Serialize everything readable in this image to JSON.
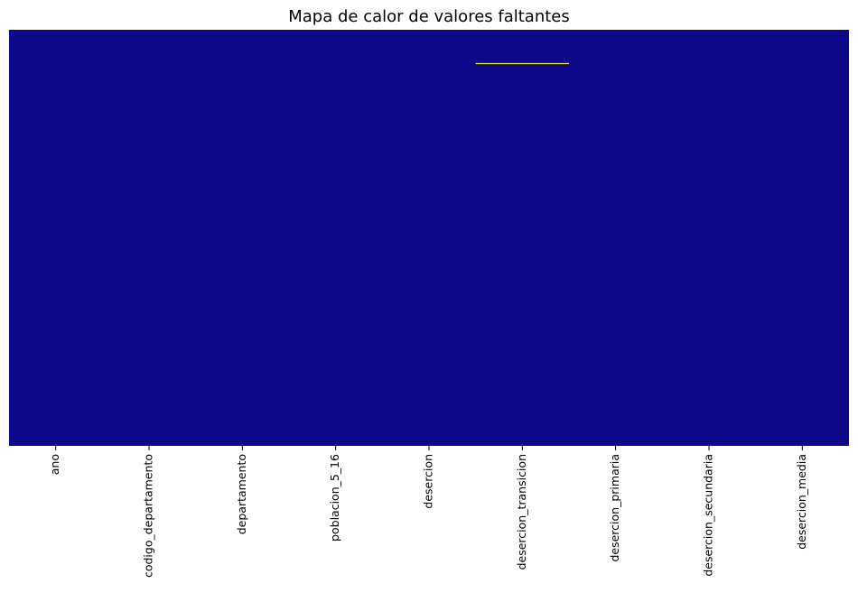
{
  "chart_data": {
    "type": "heatmap",
    "title": "Mapa de calor de valores faltantes",
    "xlabel": "",
    "ylabel": "",
    "columns": [
      "ano",
      "codigo_departamento",
      "departamento",
      "poblacion_5_16",
      "desercion",
      "desercion_transicion",
      "desercion_primaria",
      "desercion_secundaria",
      "desercion_media"
    ],
    "rows_shown": false,
    "grid": false,
    "colorbar": false,
    "colors": {
      "present": "#0d0887",
      "missing": "#f0f921"
    },
    "missing_cells": [
      {
        "column": "desercion_transicion",
        "row_fraction": 0.08
      }
    ]
  }
}
